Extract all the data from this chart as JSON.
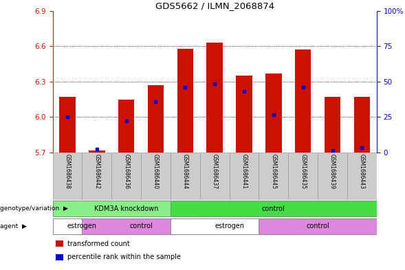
{
  "title": "GDS5662 / ILMN_2068874",
  "samples": [
    "GSM1686438",
    "GSM1686442",
    "GSM1686436",
    "GSM1686440",
    "GSM1686444",
    "GSM1686437",
    "GSM1686441",
    "GSM1686445",
    "GSM1686435",
    "GSM1686439",
    "GSM1686443"
  ],
  "bar_values": [
    6.17,
    5.72,
    6.15,
    6.27,
    6.58,
    6.63,
    6.35,
    6.37,
    6.57,
    6.17,
    6.17
  ],
  "bar_base": 5.7,
  "blue_dot_values": [
    6.0,
    5.73,
    5.97,
    6.13,
    6.25,
    6.28,
    6.22,
    6.02,
    6.25,
    5.72,
    5.74
  ],
  "ylim_left": [
    5.7,
    6.9
  ],
  "ylim_right": [
    0,
    100
  ],
  "yticks_left": [
    5.7,
    6.0,
    6.3,
    6.6,
    6.9
  ],
  "yticks_right": [
    0,
    25,
    50,
    75,
    100
  ],
  "grid_values": [
    6.0,
    6.3,
    6.6
  ],
  "bar_color": "#cc1100",
  "dot_color": "#0000cc",
  "bar_width": 0.55,
  "genotype_groups": [
    {
      "label": "KDM3A knockdown",
      "start": 0,
      "end": 4,
      "color": "#88ee88"
    },
    {
      "label": "control",
      "start": 4,
      "end": 10,
      "color": "#44dd44"
    }
  ],
  "agent_groups": [
    {
      "label": "estrogen",
      "start": 0,
      "end": 1,
      "color": "#ffffff"
    },
    {
      "label": "control",
      "start": 1,
      "end": 4,
      "color": "#dd88dd"
    },
    {
      "label": "estrogen",
      "start": 4,
      "end": 7,
      "color": "#ffffff"
    },
    {
      "label": "control",
      "start": 7,
      "end": 10,
      "color": "#dd88dd"
    }
  ],
  "legend_items": [
    {
      "label": "transformed count",
      "color": "#cc1100"
    },
    {
      "label": "percentile rank within the sample",
      "color": "#0000cc"
    }
  ],
  "left_label_color": "#cc1100",
  "right_label_color": "#0000cc",
  "sample_box_color": "#cccccc"
}
